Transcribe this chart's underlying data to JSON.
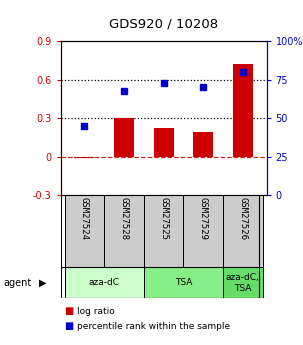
{
  "title": "GDS920 / 10208",
  "categories": [
    "GSM27524",
    "GSM27528",
    "GSM27525",
    "GSM27529",
    "GSM27526"
  ],
  "log_ratios": [
    -0.01,
    0.3,
    0.22,
    0.19,
    0.72
  ],
  "percentile_ranks": [
    45,
    68,
    73,
    70,
    80
  ],
  "ylim_left": [
    -0.3,
    0.9
  ],
  "ylim_right": [
    0,
    100
  ],
  "yticks_left": [
    -0.3,
    0.0,
    0.3,
    0.6,
    0.9
  ],
  "yticks_right": [
    0,
    25,
    50,
    75,
    100
  ],
  "ytick_labels_right": [
    "0",
    "25",
    "50",
    "75",
    "100%"
  ],
  "bar_color": "#cc0000",
  "marker_color": "#0000cc",
  "hline_dotted": [
    0.3,
    0.6
  ],
  "hline_dashed": 0.0,
  "agent_groups": [
    {
      "label": "aza-dC",
      "start": 0,
      "end": 2,
      "color": "#ccffcc"
    },
    {
      "label": "TSA",
      "start": 2,
      "end": 4,
      "color": "#88ee88"
    },
    {
      "label": "aza-dC,\nTSA",
      "start": 4,
      "end": 5,
      "color": "#66dd66"
    }
  ],
  "legend_items": [
    {
      "color": "#cc0000",
      "label": "log ratio"
    },
    {
      "color": "#0000cc",
      "label": "percentile rank within the sample"
    }
  ],
  "agent_label": "agent",
  "bar_width": 0.5,
  "background_color": "#ffffff",
  "label_box_color": "#cccccc",
  "plot_bg_color": "#ffffff"
}
